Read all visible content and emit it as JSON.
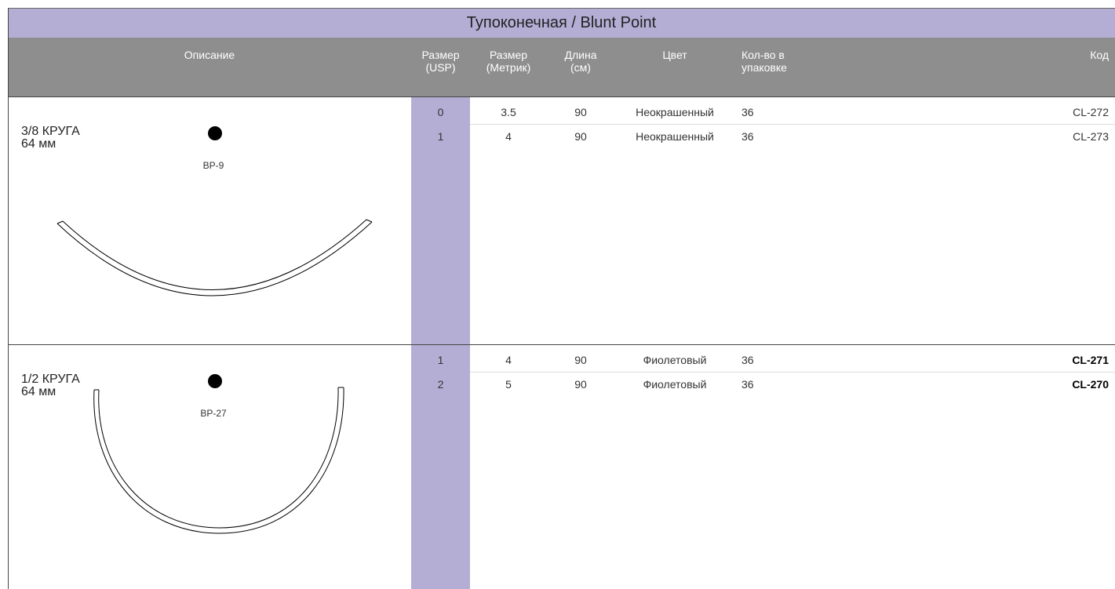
{
  "title": "Тупоконечная / Blunt Point",
  "header": {
    "description": "Описание",
    "usp": [
      "Размер",
      "(USP)"
    ],
    "metric": [
      "Размер",
      "(Метрик)"
    ],
    "length": [
      "Длина",
      "(см)"
    ],
    "color": "Цвет",
    "qty": [
      "Кол-во в",
      "упаковке"
    ],
    "code": "Код"
  },
  "sections": [
    {
      "label": [
        "3/8 КРУГА",
        "64 мм"
      ],
      "needle": "BP-9",
      "bold_codes": false,
      "rows": [
        {
          "usp": 0,
          "metric": 3.5,
          "length": 90,
          "color": "Неокрашенный",
          "qty": 36,
          "code": "CL-272"
        },
        {
          "usp": 1,
          "metric": 4,
          "length": 90,
          "color": "Неокрашенный",
          "qty": 36,
          "code": "CL-273"
        }
      ]
    },
    {
      "label": [
        "1/2 КРУГА",
        "64 мм"
      ],
      "needle": "BP-27",
      "bold_codes": true,
      "rows": [
        {
          "usp": 1,
          "metric": 4,
          "length": 90,
          "color": "Фиолетовый",
          "qty": 36,
          "code": "CL-271"
        },
        {
          "usp": 2,
          "metric": 5,
          "length": 90,
          "color": "Фиолетовый",
          "qty": 36,
          "code": "CL-270"
        }
      ]
    }
  ]
}
